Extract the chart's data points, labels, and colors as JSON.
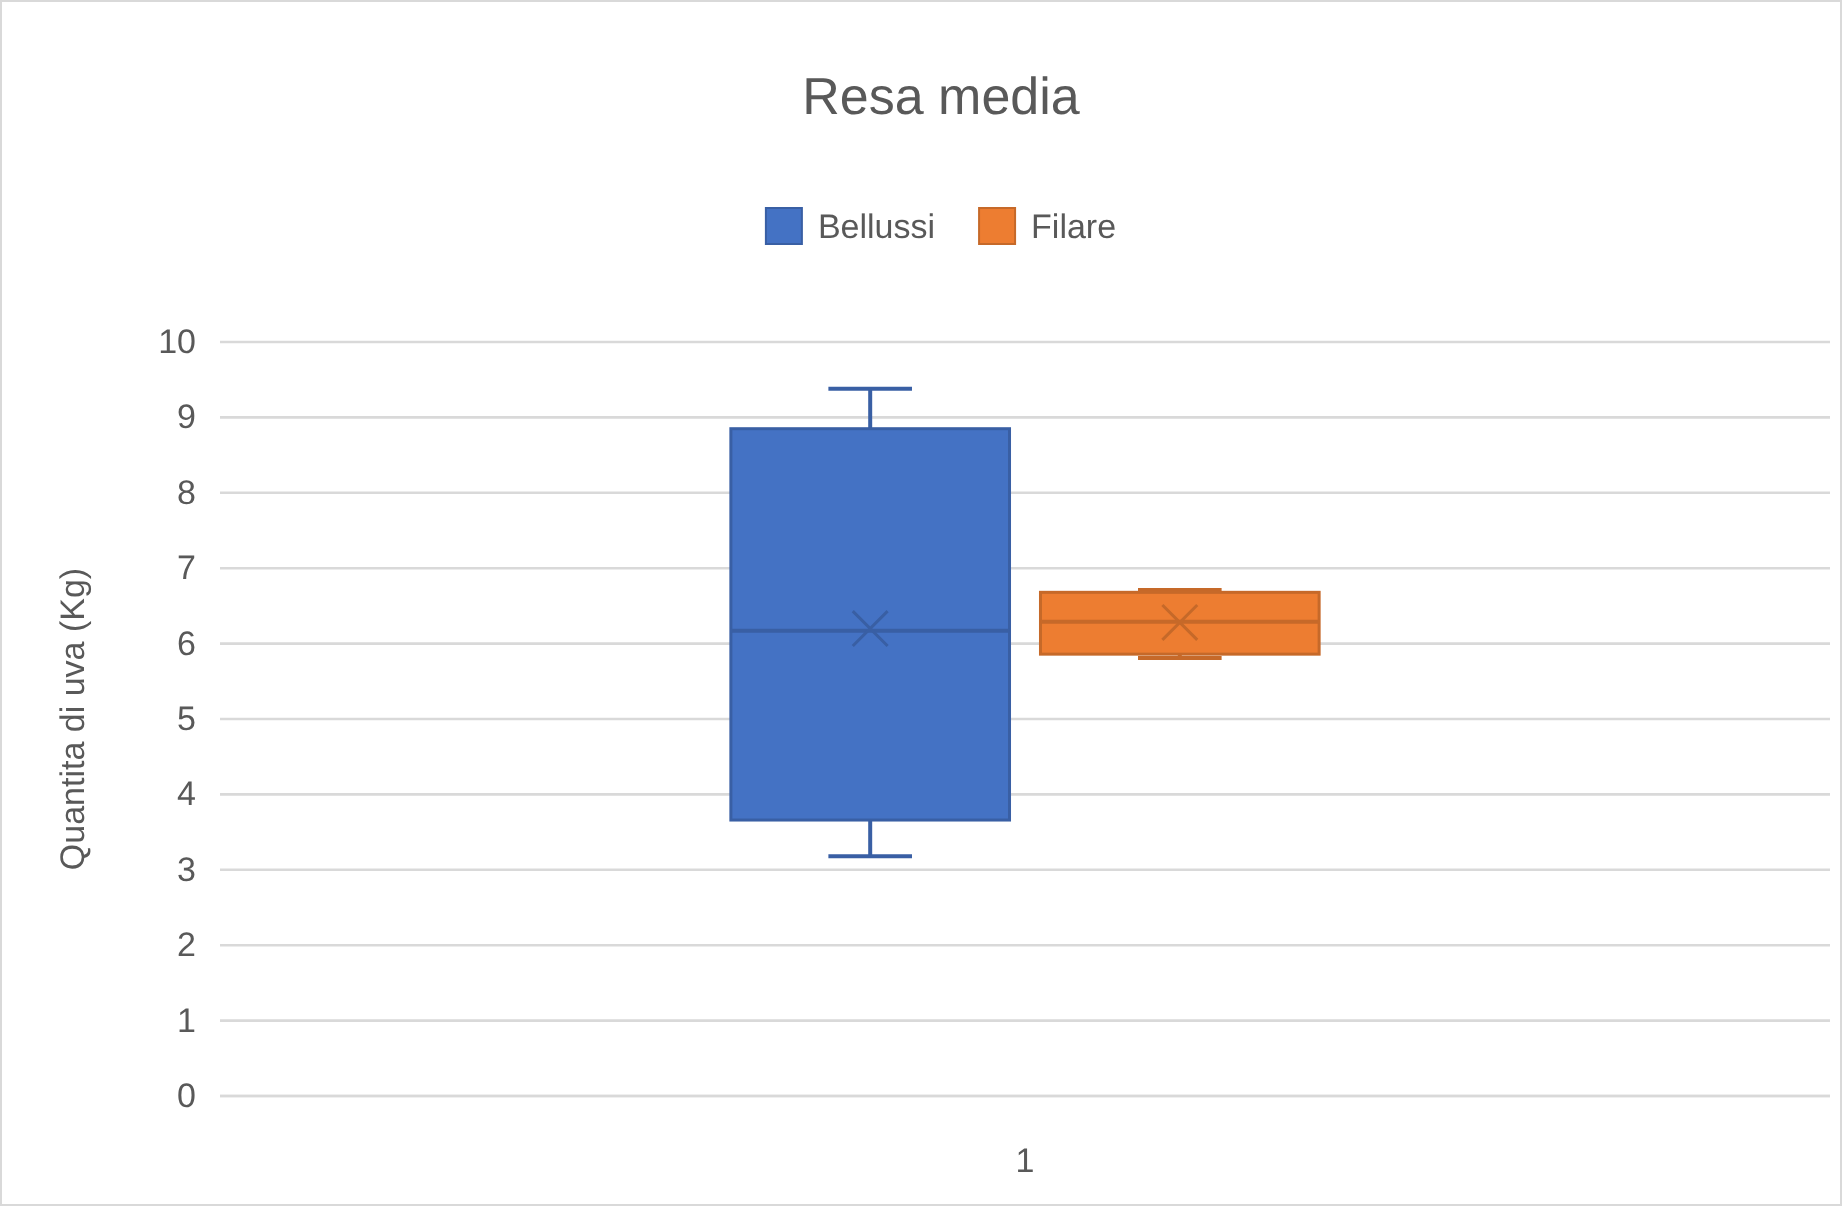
{
  "chart_data": {
    "type": "box",
    "title": "Resa media",
    "ylabel": "Quantita di uva (Kg)",
    "categories": [
      "1"
    ],
    "ylim": [
      0,
      10
    ],
    "yticks": [
      0,
      1,
      2,
      3,
      4,
      5,
      6,
      7,
      8,
      9,
      10
    ],
    "grid": "y",
    "legend": "top",
    "marker": "cross",
    "series": [
      {
        "name": "Bellussi",
        "color": "#4472c4",
        "boxes": [
          {
            "low": 3.18,
            "q1": 3.66,
            "median": 6.17,
            "q3": 8.85,
            "high": 9.38,
            "mean": 6.2
          }
        ]
      },
      {
        "name": "Filare",
        "color": "#ed7d31",
        "boxes": [
          {
            "low": 5.81,
            "q1": 5.86,
            "median": 6.29,
            "q3": 6.68,
            "high": 6.71,
            "mean": 6.28
          }
        ]
      }
    ]
  }
}
